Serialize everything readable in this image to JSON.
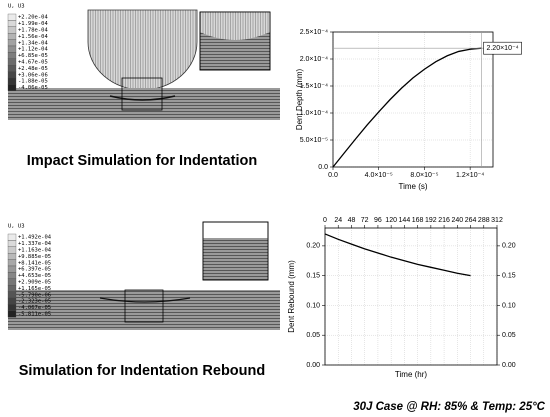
{
  "chart_data": [
    {
      "type": "line",
      "xlabel": "Time (s)",
      "ylabel": "Dent Depth (mm)",
      "x": [
        0,
        1e-05,
        2e-05,
        3e-05,
        4e-05,
        5e-05,
        6e-05,
        7e-05,
        8e-05,
        9e-05,
        0.0001,
        0.00011,
        0.00012,
        0.00013
      ],
      "values": [
        0,
        2.64e-05,
        5.26e-05,
        7.81e-05,
        0.000102,
        0.000125,
        0.000146,
        0.000165,
        0.000181,
        0.000195,
        0.000206,
        0.000214,
        0.000218,
        0.00022
      ],
      "color": "#000000",
      "xlim": [
        0,
        0.00014
      ],
      "ylim": [
        0,
        0.00025
      ],
      "xticks": [
        {
          "value": 0,
          "label": "0.0"
        },
        {
          "value": 4e-05,
          "label": "4.0×10⁻⁵"
        },
        {
          "value": 8e-05,
          "label": "8.0×10⁻⁵"
        },
        {
          "value": 0.00012,
          "label": "1.2×10⁻⁴"
        }
      ],
      "yticks": [
        {
          "value": 0,
          "label": "0.0"
        },
        {
          "value": 5e-05,
          "label": "5.0×10⁻⁵"
        },
        {
          "value": 0.0001,
          "label": "1.0×10⁻⁴"
        },
        {
          "value": 0.00015,
          "label": "1.5×10⁻⁴"
        },
        {
          "value": 0.0002,
          "label": "2.0×10⁻⁴"
        },
        {
          "value": 0.00025,
          "label": "2.5×10⁻⁴"
        }
      ],
      "grid": true,
      "annotation": "2.20×10⁻⁴"
    },
    {
      "type": "line",
      "xlabel": "Time (hr)",
      "ylabel": "Dent Rebound (mm)",
      "x": [
        0,
        24,
        48,
        72,
        96,
        120,
        144,
        168,
        192,
        216,
        240,
        264
      ],
      "values": [
        0.22,
        0.211,
        0.203,
        0.195,
        0.188,
        0.181,
        0.175,
        0.169,
        0.164,
        0.159,
        0.154,
        0.15
      ],
      "color": "#000000",
      "xlim": [
        0,
        312
      ],
      "xaxis_position": "top",
      "xticks": [
        0,
        24,
        48,
        72,
        96,
        120,
        144,
        168,
        192,
        216,
        240,
        264,
        288,
        312
      ],
      "ylim": [
        0,
        0.23
      ],
      "yticks": [
        {
          "value": 0,
          "label": "0.00"
        },
        {
          "value": 0.05,
          "label": "0.05"
        },
        {
          "value": 0.1,
          "label": "0.10"
        },
        {
          "value": 0.15,
          "label": "0.15"
        },
        {
          "value": 0.2,
          "label": "0.20"
        }
      ],
      "y2lim": [
        0,
        0.23
      ],
      "y2ticks": [
        {
          "value": 0,
          "label": "0.00"
        },
        {
          "value": 0.05,
          "label": "0.05"
        },
        {
          "value": 0.1,
          "label": "0.10"
        },
        {
          "value": 0.15,
          "label": "0.15"
        },
        {
          "value": 0.2,
          "label": "0.20"
        }
      ],
      "grid": true
    }
  ],
  "panels": [
    {
      "legend_title": "U, U3",
      "legend_labels": [
        "+2.20e-04",
        "+1.99e-04",
        "+1.78e-04",
        "+1.56e-04",
        "+1.34e-04",
        "+1.12e-04",
        "+6.85e-05",
        "+4.67e-05",
        "+2.48e-05",
        "+3.06e-06",
        "-1.88e-05",
        "-4.06e-05"
      ],
      "caption": "Impact Simulation for Indentation"
    },
    {
      "legend_title": "U, U3",
      "legend_labels": [
        "+1.492e-04",
        "+1.337e-04",
        "+1.163e-04",
        "+9.885e-05",
        "+8.141e-05",
        "+6.397e-05",
        "+4.653e-05",
        "+2.909e-05",
        "+1.165e-05",
        "-5.790e-06",
        "-2.323e-05",
        "-4.067e-05",
        "-5.811e-05"
      ],
      "caption": "Simulation for Indentation Rebound"
    }
  ],
  "footer": "30J Case @ RH: 85% & Temp: 25°C"
}
